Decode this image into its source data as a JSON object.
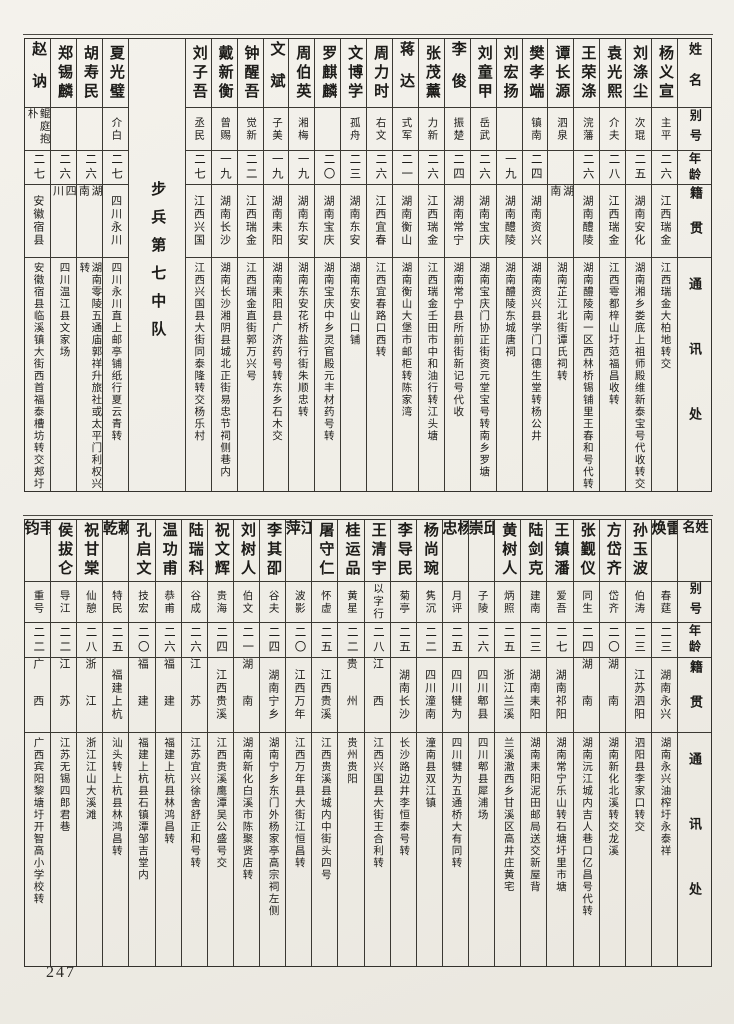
{
  "page": {
    "number": "247"
  },
  "header": {
    "name": "姓名",
    "alias": "别号",
    "age": "年龄",
    "native": "籍贯",
    "address": "通讯处"
  },
  "tables": {
    "top": {
      "columns": [
        {
          "name": "杨义宣",
          "alias": "主平",
          "age": "二六",
          "native": "江西瑞金",
          "address": "江西瑞金大柏地转交"
        },
        {
          "name": "刘涤尘",
          "alias": "次琨",
          "age": "二五",
          "native": "湖南安化",
          "address": "湖南湘乡娄底上祖师殿维新泰宝号代收转交"
        },
        {
          "name": "袁光熙",
          "alias": "介夫",
          "age": "二八",
          "native": "江西瑞金",
          "address": "江西雩都梓山圩范福昌收转"
        },
        {
          "name": "王荣涤",
          "alias": "浣藩",
          "age": "二六",
          "native": "湖南醴陵",
          "address": "湖南醴陵南一区西林桥锡铺里王春和号代转"
        },
        {
          "name": "谭长源",
          "alias": "泗泉",
          "age": "",
          "native": "湖南",
          "address": "湖南芷江北街谭氏祠转"
        },
        {
          "name": "樊孝端",
          "alias": "镇南",
          "age": "二四",
          "native": "湖南资兴",
          "address": "湖南资兴县学门口德生堂转杨公井"
        },
        {
          "name": "刘宏扬",
          "alias": "",
          "age": "一九",
          "native": "湖南醴陵",
          "address": "湖南醴陵东城唐祠"
        },
        {
          "name": "刘童甲",
          "alias": "岳武",
          "age": "二六",
          "native": "湖南宝庆",
          "address": "湖南宝庆门协正街资元堂宝号转南乡罗塘"
        },
        {
          "name": "李俊",
          "alias": "振楚",
          "age": "二四",
          "native": "湖南常宁",
          "address": "湖南常宁县所前街新记号代收"
        },
        {
          "name": "张茂薰",
          "alias": "力新",
          "age": "二六",
          "native": "江西瑞金",
          "address": "江西瑞金壬田市中和油行转江头塘"
        },
        {
          "name": "蒋达",
          "alias": "式军",
          "age": "二一",
          "native": "湖南衡山",
          "address": "湖南衡山大堡市邮柜转陈家湾"
        },
        {
          "name": "周力时",
          "alias": "右文",
          "age": "二六",
          "native": "江西宜春",
          "address": "江西宜春路口西转"
        },
        {
          "name": "文博学",
          "alias": "孤舟",
          "age": "二三",
          "native": "湖南东安",
          "address": "湖南东安山口铺"
        },
        {
          "name": "罗麒麟",
          "alias": "",
          "age": "二〇",
          "native": "湖南宝庆",
          "address": "湖南宝庆中乡灵官殿元丰材药号转"
        },
        {
          "name": "周伯英",
          "alias": "湘梅",
          "age": "一九",
          "native": "湖南东安",
          "address": "湖南东安花桥盐行街朱顺忠转"
        },
        {
          "name": "文斌",
          "alias": "子美",
          "age": "一九",
          "native": "湖南耒阳",
          "address": "湖南耒阳县广济药号转东乡石木交"
        },
        {
          "name": "钟醒吾",
          "alias": "觉新",
          "age": "二二",
          "native": "江西瑞金",
          "address": "江西瑞金直街郭万兴号"
        },
        {
          "name": "戴新衡",
          "alias": "曾赐",
          "age": "一九",
          "native": "湖南长沙",
          "address": "湖南长沙湘阴县城北正街易忠节祠侧巷内"
        },
        {
          "name": "刘子吾",
          "alias": "丞民",
          "age": "二七",
          "native": "江西兴国",
          "address": "江西兴国县大街同泰隆转交杨乐村"
        },
        {
          "section": "步兵第七中队"
        },
        {
          "name": "夏光璧",
          "alias": "介白",
          "age": "二七",
          "native": "四川永川",
          "address": "四川永川直上邮亭铺纸行夏云青转"
        },
        {
          "name": "胡寿民",
          "alias": "",
          "age": "二六",
          "native": "湖南",
          "address": "湖南零陵五通庙郭祥升旅社或太平门利权兴转"
        },
        {
          "name": "郑锡麟",
          "alias": "",
          "age": "二六",
          "native": "四川",
          "address": "四川温江县文家场"
        },
        {
          "name": "赵讷",
          "alias": "鲲庭抱朴",
          "age": "二七",
          "native": "安徽宿县",
          "address": "安徽宿县临溪镇大街西首福泰槽坊转交郏圩"
        }
      ]
    },
    "bottom": {
      "columns": [
        {
          "name": "雷焕",
          "alias": "春莛",
          "age": "二三",
          "native": "湖南永兴",
          "address": "湖南永兴油榨圩永泰祥"
        },
        {
          "name": "孙玉波",
          "alias": "伯涛",
          "age": "二三",
          "native": "江苏泗阳",
          "address": "泗阳县李家口转交"
        },
        {
          "name": "方岱齐",
          "alias": "岱齐",
          "age": "二〇",
          "native": "湖南",
          "address": "湖南新化北溪转交龙溪"
        },
        {
          "name": "张觐仪",
          "alias": "同生",
          "age": "二四",
          "native": "湖南",
          "address": "湖南沅江城内吉人巷口亿昌号代转"
        },
        {
          "name": "王镇潘",
          "alias": "爱吾",
          "age": "二七",
          "native": "湖南祁阳",
          "address": "湖南常宁乐山转石塘圩里市塘"
        },
        {
          "name": "陆剑克",
          "alias": "建南",
          "age": "二三",
          "native": "湖南耒阳",
          "address": "湖南耒阳泥田邮局送交新屋背"
        },
        {
          "name": "黄树人",
          "alias": "炳照",
          "age": "二五",
          "native": "浙江兰溪",
          "address": "兰溪澈西乡甘溪区高井庄黄宅"
        },
        {
          "name": "邱崇",
          "alias": "子陵",
          "age": "二六",
          "native": "四川郫县",
          "address": "四川郫县犀浦场"
        },
        {
          "name": "杨忠",
          "alias": "月评",
          "age": "二五",
          "native": "四川犍为",
          "address": "四川犍为五通桥大有同转"
        },
        {
          "name": "杨尚琬",
          "alias": "隽沉",
          "age": "二二",
          "native": "四川潼南",
          "address": "潼南县双江镇"
        },
        {
          "name": "李导民",
          "alias": "菊亭",
          "age": "二五",
          "native": "湖南长沙",
          "address": "长沙路边井李恒泰号转"
        },
        {
          "name": "王清宇",
          "alias": "以字行",
          "age": "二八",
          "native": "江西",
          "address": "江西兴国县大街王合利转"
        },
        {
          "name": "桂运品",
          "alias": "黄星",
          "age": "二二",
          "native": "贵州",
          "address": "贵州贵阳"
        },
        {
          "name": "屠守仁",
          "alias": "怀虚",
          "age": "二五",
          "native": "江西贵溪",
          "address": "江西贵溪县城内中街头四号"
        },
        {
          "name": "江萍",
          "alias": "波影",
          "age": "二〇",
          "native": "江西万年",
          "address": "江西万年县大街江恒昌转"
        },
        {
          "name": "李其卲",
          "alias": "谷夫",
          "age": "二四",
          "native": "湖南宁乡",
          "address": "湖南宁乡东门外杨家亭高宗祠左侧"
        },
        {
          "name": "刘树人",
          "alias": "伯文",
          "age": "二一",
          "native": "湖南",
          "address": "湖南新化白溪市陈聚贤店转"
        },
        {
          "name": "祝文辉",
          "alias": "贵海",
          "age": "二四",
          "native": "江西贵溪",
          "address": "江西贵溪鹰潭吴公盛号交"
        },
        {
          "name": "陆瑞科",
          "alias": "谷成",
          "age": "二六",
          "native": "江苏",
          "address": "江苏宜兴徐舍舒正和号转"
        },
        {
          "name": "温功甫",
          "alias": "恭甫",
          "age": "二六",
          "native": "福建",
          "address": "福建上杭县林鸿昌转"
        },
        {
          "name": "孔启文",
          "alias": "技宏",
          "age": "二〇",
          "native": "福建",
          "address": "福建上杭县石镇潭邹吉堂内"
        },
        {
          "name": "赖乾",
          "alias": "特民",
          "age": "二五",
          "native": "福建上杭",
          "address": "汕头转上杭县林鸿昌转"
        },
        {
          "name": "祝甘棠",
          "alias": "仙憩",
          "age": "二八",
          "native": "浙江",
          "address": "浙江江山大溪滩"
        },
        {
          "name": "侯拔仑",
          "alias": "导江",
          "age": "二二",
          "native": "江苏",
          "address": "江苏无锡四郎君巷"
        },
        {
          "name": "韦钧",
          "alias": "重号",
          "age": "二二",
          "native": "广西",
          "address": "广西宾阳黎塘圩开智高小学校转"
        }
      ]
    }
  }
}
